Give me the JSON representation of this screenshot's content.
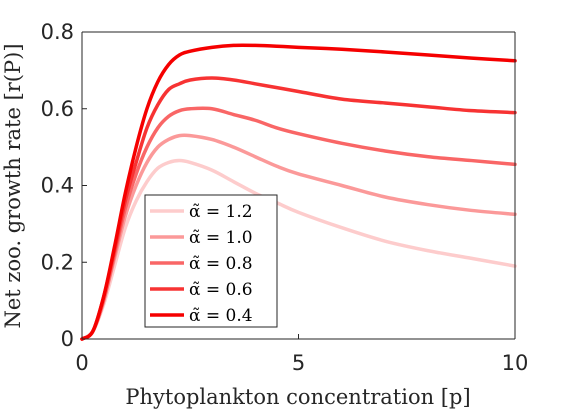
{
  "chart_data": {
    "type": "line",
    "xlabel": "Phytoplankton concentration [p]",
    "ylabel": "Net zoo. growth rate [r(P)]",
    "xlim": [
      0,
      10
    ],
    "ylim": [
      0,
      0.8
    ],
    "xticks": [
      "0",
      "5",
      "10"
    ],
    "yticks": [
      "0",
      "0.2",
      "0.4",
      "0.6",
      "0.8"
    ],
    "grid": false,
    "legend_position": "bottom-left",
    "x": [
      0,
      0.25,
      0.5,
      0.75,
      1.0,
      1.25,
      1.5,
      1.75,
      2.0,
      2.25,
      2.5,
      3.0,
      3.5,
      4.0,
      4.5,
      5.0,
      6.0,
      7.0,
      8.0,
      9.0,
      10.0
    ],
    "series": [
      {
        "name": "α̃ = 1.2",
        "color": "#fdcccc",
        "values": [
          0,
          0.02,
          0.09,
          0.19,
          0.29,
          0.36,
          0.41,
          0.445,
          0.46,
          0.465,
          0.46,
          0.44,
          0.41,
          0.38,
          0.355,
          0.33,
          0.29,
          0.255,
          0.23,
          0.21,
          0.19
        ]
      },
      {
        "name": "α̃ = 1.0",
        "color": "#fb9999",
        "values": [
          0,
          0.02,
          0.1,
          0.21,
          0.32,
          0.4,
          0.46,
          0.5,
          0.52,
          0.53,
          0.53,
          0.52,
          0.5,
          0.475,
          0.45,
          0.43,
          0.4,
          0.37,
          0.35,
          0.335,
          0.325
        ]
      },
      {
        "name": "α̃ = 0.8",
        "color": "#f96666",
        "values": [
          0,
          0.02,
          0.1,
          0.22,
          0.34,
          0.43,
          0.5,
          0.55,
          0.58,
          0.595,
          0.6,
          0.6,
          0.585,
          0.57,
          0.55,
          0.535,
          0.51,
          0.49,
          0.475,
          0.465,
          0.455
        ]
      },
      {
        "name": "α̃ = 0.6",
        "color": "#f73333",
        "values": [
          0,
          0.02,
          0.11,
          0.23,
          0.36,
          0.46,
          0.55,
          0.61,
          0.65,
          0.665,
          0.675,
          0.68,
          0.675,
          0.665,
          0.655,
          0.645,
          0.625,
          0.615,
          0.605,
          0.595,
          0.59
        ]
      },
      {
        "name": "α̃ = 0.4",
        "color": "#f50000",
        "values": [
          0,
          0.02,
          0.11,
          0.24,
          0.38,
          0.5,
          0.6,
          0.67,
          0.715,
          0.74,
          0.75,
          0.76,
          0.765,
          0.765,
          0.763,
          0.76,
          0.755,
          0.748,
          0.74,
          0.732,
          0.725
        ]
      }
    ]
  }
}
